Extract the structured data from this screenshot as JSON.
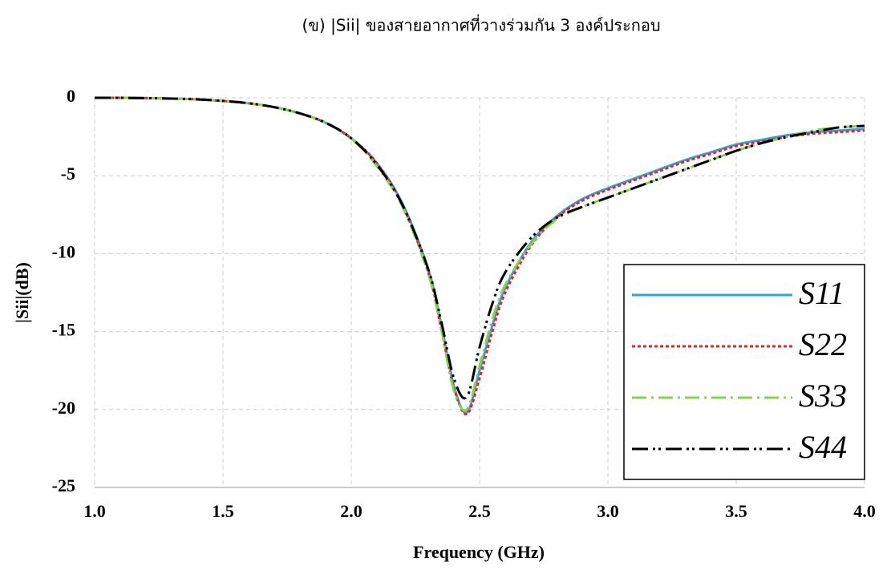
{
  "chart_data": {
    "type": "line",
    "title": "(ข) |Sii| ของสายอากาศที่วางร่วมกัน 3 องค์ประกอบ",
    "x_label": "Frequency (GHz)",
    "y_label": "|Sii|(dB)",
    "x": [
      1.0,
      1.1,
      1.2,
      1.3,
      1.4,
      1.5,
      1.6,
      1.7,
      1.8,
      1.9,
      2.0,
      2.1,
      2.2,
      2.3,
      2.35,
      2.4,
      2.45,
      2.5,
      2.55,
      2.6,
      2.7,
      2.8,
      2.9,
      3.0,
      3.1,
      3.2,
      3.3,
      3.4,
      3.5,
      3.6,
      3.7,
      3.8,
      3.9,
      4.0
    ],
    "series": [
      {
        "name": "S11",
        "color": "#2ea3dc",
        "style": "solid",
        "values": [
          0,
          0,
          -0.02,
          -0.05,
          -0.1,
          -0.2,
          -0.35,
          -0.6,
          -1.0,
          -1.6,
          -2.6,
          -4.2,
          -6.8,
          -11,
          -14.5,
          -18.5,
          -20.2,
          -17.5,
          -14.6,
          -12.2,
          -9.3,
          -7.6,
          -6.5,
          -5.8,
          -5.2,
          -4.6,
          -4.0,
          -3.5,
          -3.0,
          -2.7,
          -2.4,
          -2.2,
          -2.1,
          -2.0
        ]
      },
      {
        "name": "S22",
        "color": "#e8222a",
        "style": "dotted",
        "values": [
          0,
          0,
          -0.02,
          -0.05,
          -0.1,
          -0.2,
          -0.35,
          -0.6,
          -1.0,
          -1.6,
          -2.6,
          -4.2,
          -6.9,
          -11.2,
          -14.8,
          -18.6,
          -20.3,
          -18.0,
          -15.0,
          -12.5,
          -9.5,
          -7.7,
          -6.6,
          -5.9,
          -5.3,
          -4.7,
          -4.1,
          -3.6,
          -3.1,
          -2.8,
          -2.5,
          -2.3,
          -2.2,
          -2.1
        ]
      },
      {
        "name": "S33",
        "color": "#8ccf4d",
        "style": "dashdot",
        "values": [
          0,
          0,
          -0.02,
          -0.05,
          -0.1,
          -0.2,
          -0.35,
          -0.6,
          -1.0,
          -1.6,
          -2.6,
          -4.4,
          -7.0,
          -11.3,
          -14.8,
          -18.8,
          -20.0,
          -17.2,
          -14.2,
          -12.0,
          -9.4,
          -7.8,
          -7.0,
          -6.4,
          -5.8,
          -5.2,
          -4.6,
          -4.0,
          -3.4,
          -2.9,
          -2.5,
          -2.1,
          -1.9,
          -1.8
        ]
      },
      {
        "name": "S44",
        "color": "#000000",
        "style": "dashdotdot",
        "values": [
          0,
          0,
          -0.02,
          -0.05,
          -0.1,
          -0.2,
          -0.35,
          -0.6,
          -1.0,
          -1.6,
          -2.6,
          -4.3,
          -6.9,
          -11.0,
          -14.3,
          -18.0,
          -19.2,
          -16.0,
          -13.2,
          -11.2,
          -9.0,
          -7.7,
          -7.0,
          -6.4,
          -5.8,
          -5.2,
          -4.6,
          -4.0,
          -3.4,
          -2.9,
          -2.5,
          -2.2,
          -1.9,
          -1.8
        ]
      }
    ],
    "xlim": [
      1.0,
      4.0
    ],
    "xticks": [
      {
        "value": 1.0,
        "label": "1.0"
      },
      1.5,
      {
        "value": 2.0,
        "label": "2.0"
      },
      2.5,
      {
        "value": 3.0,
        "label": "3.0"
      },
      3.5,
      {
        "value": 4.0,
        "label": "4.0"
      }
    ],
    "ylim": [
      -25,
      0
    ],
    "yticks": [
      0,
      -5,
      -10,
      -15,
      -20,
      -25
    ],
    "grid": true,
    "legend": "lower right"
  }
}
